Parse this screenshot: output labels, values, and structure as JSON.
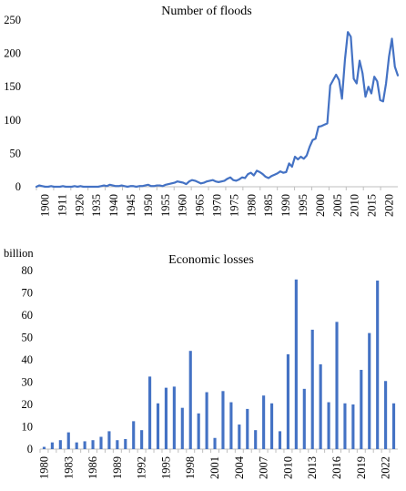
{
  "colors": {
    "series": "#4472C4",
    "axis": "#bfbfbf",
    "text": "#000000"
  },
  "chart_data": [
    {
      "type": "line",
      "title": "Number of floods",
      "xlabel": "",
      "ylabel": "",
      "ylim": [
        0,
        250
      ],
      "yticks": [
        0,
        50,
        100,
        150,
        200,
        250
      ],
      "xticks": [
        "1900",
        "1911",
        "1926",
        "1935",
        "1940",
        "1945",
        "1950",
        "1955",
        "1960",
        "1965",
        "1970",
        "1975",
        "1980",
        "1985",
        "1990",
        "1995",
        "2000",
        "2005",
        "2010",
        "2015",
        "2020"
      ],
      "grid": false,
      "series": [
        {
          "x": [
            1900,
            1901,
            1902,
            1903,
            1904,
            1905,
            1906,
            1907,
            1908,
            1909,
            1910,
            1911,
            1912,
            1913,
            1914,
            1915,
            1916,
            1917,
            1918,
            1919,
            1920,
            1921,
            1922,
            1923,
            1924,
            1925,
            1926,
            1927,
            1928,
            1929,
            1930,
            1931,
            1932,
            1933,
            1934,
            1935,
            1936,
            1937,
            1938,
            1939,
            1940,
            1941,
            1942,
            1943,
            1944,
            1945,
            1946,
            1947,
            1948,
            1949,
            1950,
            1951,
            1952,
            1953,
            1954,
            1955,
            1956,
            1957,
            1958,
            1959,
            1960,
            1961,
            1962,
            1963,
            1964,
            1965,
            1966,
            1967,
            1968,
            1969,
            1970,
            1971,
            1972,
            1973,
            1974,
            1975,
            1976,
            1977,
            1978,
            1979,
            1980,
            1981,
            1982,
            1983,
            1984,
            1985,
            1986,
            1987,
            1988,
            1989,
            1990,
            1991,
            1992,
            1993,
            1994,
            1995,
            1996,
            1997,
            1998,
            1999,
            2000,
            2001,
            2002,
            2003,
            2004,
            2005,
            2006,
            2007,
            2008,
            2009,
            2010,
            2011,
            2012,
            2013,
            2014,
            2015,
            2016,
            2017,
            2018,
            2019,
            2020,
            2021,
            2022,
            2023
          ],
          "values": [
            0,
            2,
            1,
            0,
            0,
            1,
            0,
            0,
            0,
            1,
            0,
            0,
            0,
            1,
            0,
            1,
            0,
            0,
            0,
            0,
            0,
            0,
            1,
            2,
            1,
            3,
            2,
            1,
            1,
            2,
            1,
            0,
            1,
            1,
            0,
            1,
            1,
            2,
            3,
            1,
            1,
            2,
            2,
            1,
            3,
            4,
            5,
            6,
            8,
            7,
            6,
            4,
            8,
            10,
            9,
            7,
            5,
            6,
            8,
            9,
            10,
            8,
            7,
            8,
            9,
            12,
            14,
            10,
            9,
            11,
            14,
            13,
            19,
            21,
            17,
            24,
            22,
            19,
            15,
            13,
            16,
            18,
            20,
            23,
            21,
            22,
            35,
            30,
            45,
            41,
            45,
            42,
            47,
            60,
            70,
            72,
            90,
            91,
            93,
            95,
            152,
            160,
            168,
            160,
            132,
            190,
            232,
            225,
            162,
            155,
            189,
            170,
            135,
            150,
            140,
            165,
            158,
            130,
            128,
            155,
            195,
            222,
            180,
            167
          ]
        }
      ]
    },
    {
      "type": "bar",
      "title": "Economic losses",
      "ylabel": "billion",
      "xlabel": "",
      "ylim": [
        0,
        80
      ],
      "yticks": [
        0,
        10,
        20,
        30,
        40,
        50,
        60,
        70,
        80
      ],
      "xticks": [
        "1980",
        "1983",
        "1986",
        "1989",
        "1992",
        "1995",
        "1998",
        "2001",
        "2004",
        "2007",
        "2010",
        "2013",
        "2016",
        "2019",
        "2022"
      ],
      "grid": false,
      "categories": [
        "1980",
        "1981",
        "1982",
        "1983",
        "1984",
        "1985",
        "1986",
        "1987",
        "1988",
        "1989",
        "1990",
        "1991",
        "1992",
        "1993",
        "1994",
        "1995",
        "1996",
        "1997",
        "1998",
        "1999",
        "2000",
        "2001",
        "2002",
        "2003",
        "2004",
        "2005",
        "2006",
        "2007",
        "2008",
        "2009",
        "2010",
        "2011",
        "2012",
        "2013",
        "2014",
        "2015",
        "2016",
        "2017",
        "2018",
        "2019",
        "2020",
        "2021",
        "2022",
        "2023"
      ],
      "values": [
        1,
        3,
        4,
        7.5,
        3,
        3.5,
        4,
        5.5,
        8,
        4,
        4.5,
        12.5,
        8.5,
        32.5,
        20.5,
        27.5,
        28,
        18.5,
        44,
        16,
        25.5,
        5,
        26,
        21,
        11,
        18,
        8.5,
        24,
        20.5,
        8,
        42.5,
        76,
        27,
        53.5,
        38,
        21,
        57,
        20.5,
        20,
        35.5,
        52,
        75.5,
        30.5,
        20.5
      ]
    }
  ]
}
